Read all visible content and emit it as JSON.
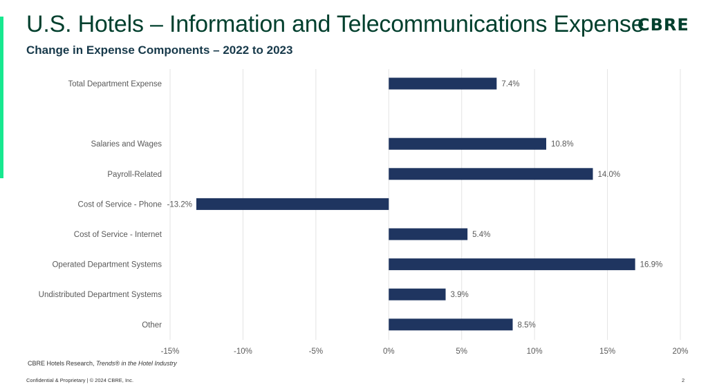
{
  "slide": {
    "title": "U.S. Hotels – Information and Telecommunications Expense",
    "subtitle": "Change in Expense Components – 2022 to 2023",
    "logo_text": "CBRE",
    "source_prefix": "CBRE Hotels Research, ",
    "source_italic": "Trends® in the Hotel Industry",
    "footer": "Confidential & Proprietary | © 2024 CBRE, Inc.",
    "page_number": "2"
  },
  "colors": {
    "bar": "#1f3560",
    "accent": "#17e88f",
    "title": "#003f2d",
    "grid": "#e3e3e3",
    "label": "#595959"
  },
  "chart_data": {
    "type": "bar",
    "orientation": "horizontal",
    "title": "",
    "xlabel": "",
    "ylabel": "",
    "grid": true,
    "xlim": [
      -15,
      20
    ],
    "x_ticks": [
      -15,
      -10,
      -5,
      0,
      5,
      10,
      15,
      20
    ],
    "x_tick_labels": [
      "-15%",
      "-10%",
      "-5%",
      "0%",
      "5%",
      "10%",
      "15%",
      "20%"
    ],
    "categories": [
      "Total Department Expense",
      "",
      "Salaries and Wages",
      "Payroll-Related",
      "Cost of Service - Phone",
      "Cost of Service - Internet",
      "Operated Department Systems",
      "Undistributed Department Systems",
      "Other"
    ],
    "values": [
      7.4,
      null,
      10.8,
      14.0,
      -13.2,
      5.4,
      16.9,
      3.9,
      8.5
    ],
    "value_labels": [
      "7.4%",
      "",
      "10.8%",
      "14.0%",
      "-13.2%",
      "5.4%",
      "16.9%",
      "3.9%",
      "8.5%"
    ]
  }
}
